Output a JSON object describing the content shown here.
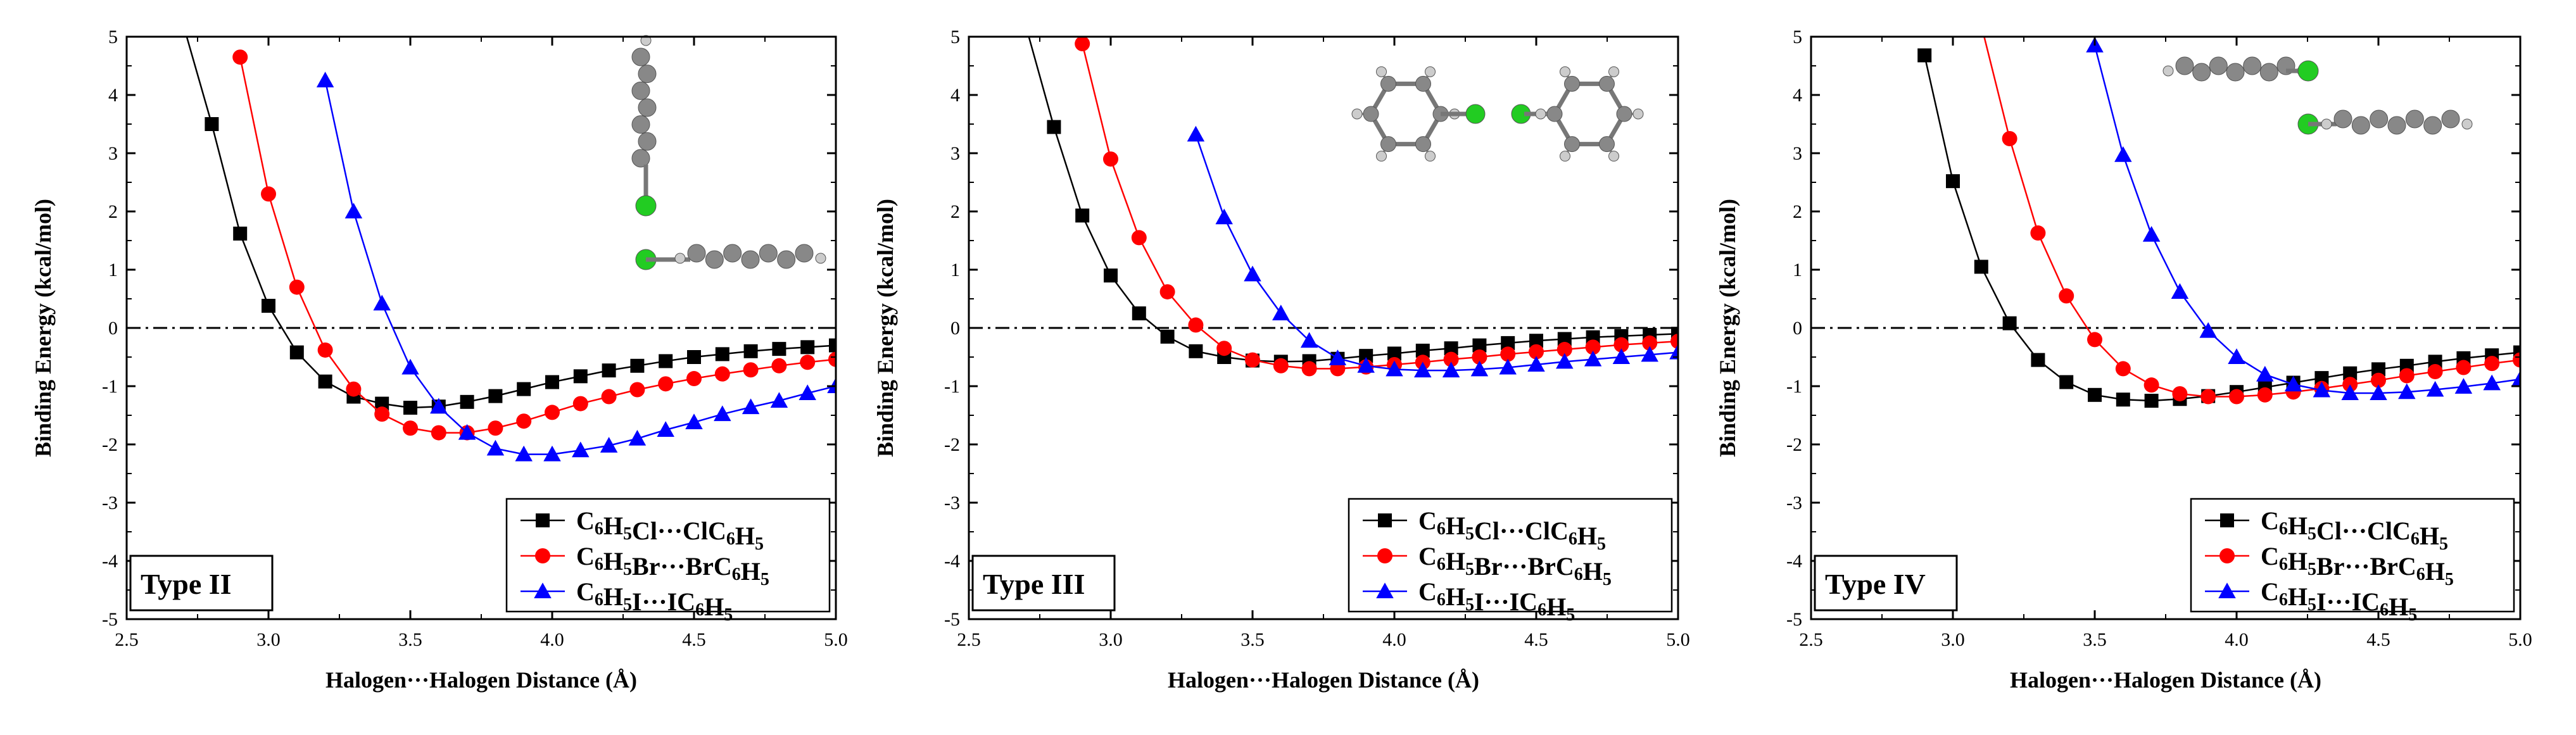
{
  "colors": {
    "black": "#000000",
    "red": "#ff0000",
    "blue": "#0000ff",
    "chlorine_green": "#22cc22",
    "carbon_gray": "#888888",
    "hydrogen_gray": "#cccccc"
  },
  "axes": {
    "xlabel": "Halogen···Halogen Distance (Å)",
    "ylabel": "Binding Energy (kcal/mol)",
    "xlim": [
      2.5,
      5.0
    ],
    "ylim": [
      -5,
      5
    ],
    "xticks": [
      "2.5",
      "3.0",
      "3.5",
      "4.0",
      "4.5",
      "5.0"
    ],
    "yticks": [
      "5",
      "4",
      "3",
      "2",
      "1",
      "0",
      "-1",
      "-2",
      "-3",
      "-4",
      "-5"
    ],
    "zero_line": "dash-dot"
  },
  "legend_entries": [
    {
      "pre": "C",
      "s1": "6",
      "mid1": "H",
      "s2": "5",
      "mid2": "Cl···ClC",
      "s3": "6",
      "mid3": "H",
      "s4": "5"
    },
    {
      "pre": "C",
      "s1": "6",
      "mid1": "H",
      "s2": "5",
      "mid2": "Br···BrC",
      "s3": "6",
      "mid3": "H",
      "s4": "5"
    },
    {
      "pre": "C",
      "s1": "6",
      "mid1": "H",
      "s2": "5",
      "mid2": "I···IC",
      "s3": "6",
      "mid3": "H",
      "s4": "5"
    }
  ],
  "chart_data": [
    {
      "type": "line",
      "panel_label": "Type II",
      "legend_position": "bottom-right",
      "xlim": [
        2.5,
        5.0
      ],
      "ylim": [
        -5,
        5
      ],
      "series": [
        {
          "name": "C6H5Cl···ClC6H5",
          "marker": "square",
          "color": "#000000",
          "x": [
            2.7,
            2.8,
            2.9,
            3.0,
            3.1,
            3.2,
            3.3,
            3.4,
            3.5,
            3.6,
            3.7,
            3.8,
            3.9,
            4.0,
            4.1,
            4.2,
            4.3,
            4.4,
            4.5,
            4.6,
            4.7,
            4.8,
            4.9,
            5.0
          ],
          "y": [
            5.2,
            3.5,
            1.62,
            0.38,
            -0.42,
            -0.92,
            -1.18,
            -1.3,
            -1.37,
            -1.35,
            -1.27,
            -1.17,
            -1.05,
            -0.93,
            -0.83,
            -0.73,
            -0.65,
            -0.57,
            -0.5,
            -0.45,
            -0.4,
            -0.36,
            -0.33,
            -0.3
          ]
        },
        {
          "name": "C6H5Br···BrC6H5",
          "marker": "circle",
          "color": "#ff0000",
          "x": [
            2.9,
            3.0,
            3.1,
            3.2,
            3.3,
            3.4,
            3.5,
            3.6,
            3.7,
            3.8,
            3.9,
            4.0,
            4.1,
            4.2,
            4.3,
            4.4,
            4.5,
            4.6,
            4.7,
            4.8,
            4.9,
            5.0
          ],
          "y": [
            4.65,
            2.3,
            0.7,
            -0.38,
            -1.05,
            -1.48,
            -1.72,
            -1.8,
            -1.8,
            -1.72,
            -1.6,
            -1.45,
            -1.3,
            -1.18,
            -1.06,
            -0.96,
            -0.87,
            -0.79,
            -0.72,
            -0.65,
            -0.59,
            -0.54
          ]
        },
        {
          "name": "C6H5I···IC6H5",
          "marker": "triangle",
          "color": "#0000ff",
          "x": [
            3.2,
            3.3,
            3.4,
            3.5,
            3.6,
            3.7,
            3.8,
            3.9,
            4.0,
            4.1,
            4.2,
            4.3,
            4.4,
            4.5,
            4.6,
            4.7,
            4.8,
            4.9,
            5.0
          ],
          "y": [
            4.25,
            2.0,
            0.42,
            -0.68,
            -1.35,
            -1.8,
            -2.07,
            -2.17,
            -2.17,
            -2.1,
            -2.02,
            -1.9,
            -1.75,
            -1.62,
            -1.48,
            -1.36,
            -1.25,
            -1.12,
            -1.0
          ]
        }
      ]
    },
    {
      "type": "line",
      "panel_label": "Type III",
      "legend_position": "bottom-right",
      "xlim": [
        2.5,
        5.0
      ],
      "ylim": [
        -5,
        5
      ],
      "series": [
        {
          "name": "C6H5Cl···ClC6H5",
          "marker": "square",
          "color": "#000000",
          "x": [
            2.7,
            2.8,
            2.9,
            3.0,
            3.1,
            3.2,
            3.3,
            3.4,
            3.5,
            3.6,
            3.7,
            3.8,
            3.9,
            4.0,
            4.1,
            4.2,
            4.3,
            4.4,
            4.5,
            4.6,
            4.7,
            4.8,
            4.9,
            5.0
          ],
          "y": [
            5.2,
            3.45,
            1.93,
            0.9,
            0.25,
            -0.15,
            -0.4,
            -0.5,
            -0.56,
            -0.58,
            -0.57,
            -0.53,
            -0.48,
            -0.44,
            -0.39,
            -0.35,
            -0.3,
            -0.26,
            -0.22,
            -0.19,
            -0.16,
            -0.14,
            -0.12,
            -0.1
          ]
        },
        {
          "name": "C6H5Br···BrC6H5",
          "marker": "circle",
          "color": "#ff0000",
          "x": [
            2.9,
            3.0,
            3.1,
            3.2,
            3.3,
            3.4,
            3.5,
            3.6,
            3.7,
            3.8,
            3.9,
            4.0,
            4.1,
            4.2,
            4.3,
            4.4,
            4.5,
            4.6,
            4.7,
            4.8,
            4.9,
            5.0
          ],
          "y": [
            4.88,
            2.9,
            1.55,
            0.62,
            0.05,
            -0.35,
            -0.55,
            -0.65,
            -0.7,
            -0.7,
            -0.67,
            -0.63,
            -0.59,
            -0.54,
            -0.5,
            -0.45,
            -0.41,
            -0.37,
            -0.33,
            -0.29,
            -0.26,
            -0.23
          ]
        },
        {
          "name": "C6H5I···IC6H5",
          "marker": "triangle",
          "color": "#0000ff",
          "x": [
            3.3,
            3.4,
            3.5,
            3.6,
            3.7,
            3.8,
            3.9,
            4.0,
            4.1,
            4.2,
            4.3,
            4.4,
            4.5,
            4.6,
            4.7,
            4.8,
            4.9,
            5.0
          ],
          "y": [
            3.32,
            1.9,
            0.92,
            0.25,
            -0.22,
            -0.52,
            -0.65,
            -0.71,
            -0.73,
            -0.73,
            -0.71,
            -0.68,
            -0.63,
            -0.58,
            -0.54,
            -0.5,
            -0.46,
            -0.42
          ]
        }
      ]
    },
    {
      "type": "line",
      "panel_label": "Type IV",
      "legend_position": "bottom-right",
      "xlim": [
        2.5,
        5.0
      ],
      "ylim": [
        -5,
        5
      ],
      "series": [
        {
          "name": "C6H5Cl···ClC6H5",
          "marker": "square",
          "color": "#000000",
          "x": [
            2.9,
            3.0,
            3.1,
            3.2,
            3.3,
            3.4,
            3.5,
            3.6,
            3.7,
            3.8,
            3.9,
            4.0,
            4.1,
            4.2,
            4.3,
            4.4,
            4.5,
            4.6,
            4.7,
            4.8,
            4.9,
            5.0
          ],
          "y": [
            4.68,
            2.52,
            1.05,
            0.08,
            -0.55,
            -0.93,
            -1.15,
            -1.23,
            -1.25,
            -1.22,
            -1.17,
            -1.1,
            -1.02,
            -0.94,
            -0.86,
            -0.78,
            -0.71,
            -0.65,
            -0.58,
            -0.52,
            -0.47,
            -0.42
          ]
        },
        {
          "name": "C6H5Br···BrC6H5",
          "marker": "circle",
          "color": "#ff0000",
          "x": [
            3.1,
            3.2,
            3.3,
            3.4,
            3.5,
            3.6,
            3.7,
            3.8,
            3.9,
            4.0,
            4.1,
            4.2,
            4.3,
            4.4,
            4.5,
            4.6,
            4.7,
            4.8,
            4.9,
            5.0
          ],
          "y": [
            5.2,
            3.25,
            1.63,
            0.55,
            -0.2,
            -0.7,
            -0.98,
            -1.13,
            -1.18,
            -1.18,
            -1.15,
            -1.1,
            -1.04,
            -0.97,
            -0.9,
            -0.82,
            -0.75,
            -0.68,
            -0.61,
            -0.55
          ]
        },
        {
          "name": "C6H5I···IC6H5",
          "marker": "triangle",
          "color": "#0000ff",
          "x": [
            3.5,
            3.6,
            3.7,
            3.8,
            3.9,
            4.0,
            4.1,
            4.2,
            4.3,
            4.4,
            4.5,
            4.6,
            4.7,
            4.8,
            4.9,
            5.0
          ],
          "y": [
            4.85,
            2.97,
            1.6,
            0.62,
            -0.05,
            -0.5,
            -0.8,
            -0.97,
            -1.07,
            -1.12,
            -1.12,
            -1.1,
            -1.06,
            -1.01,
            -0.95,
            -0.88
          ]
        }
      ]
    }
  ]
}
